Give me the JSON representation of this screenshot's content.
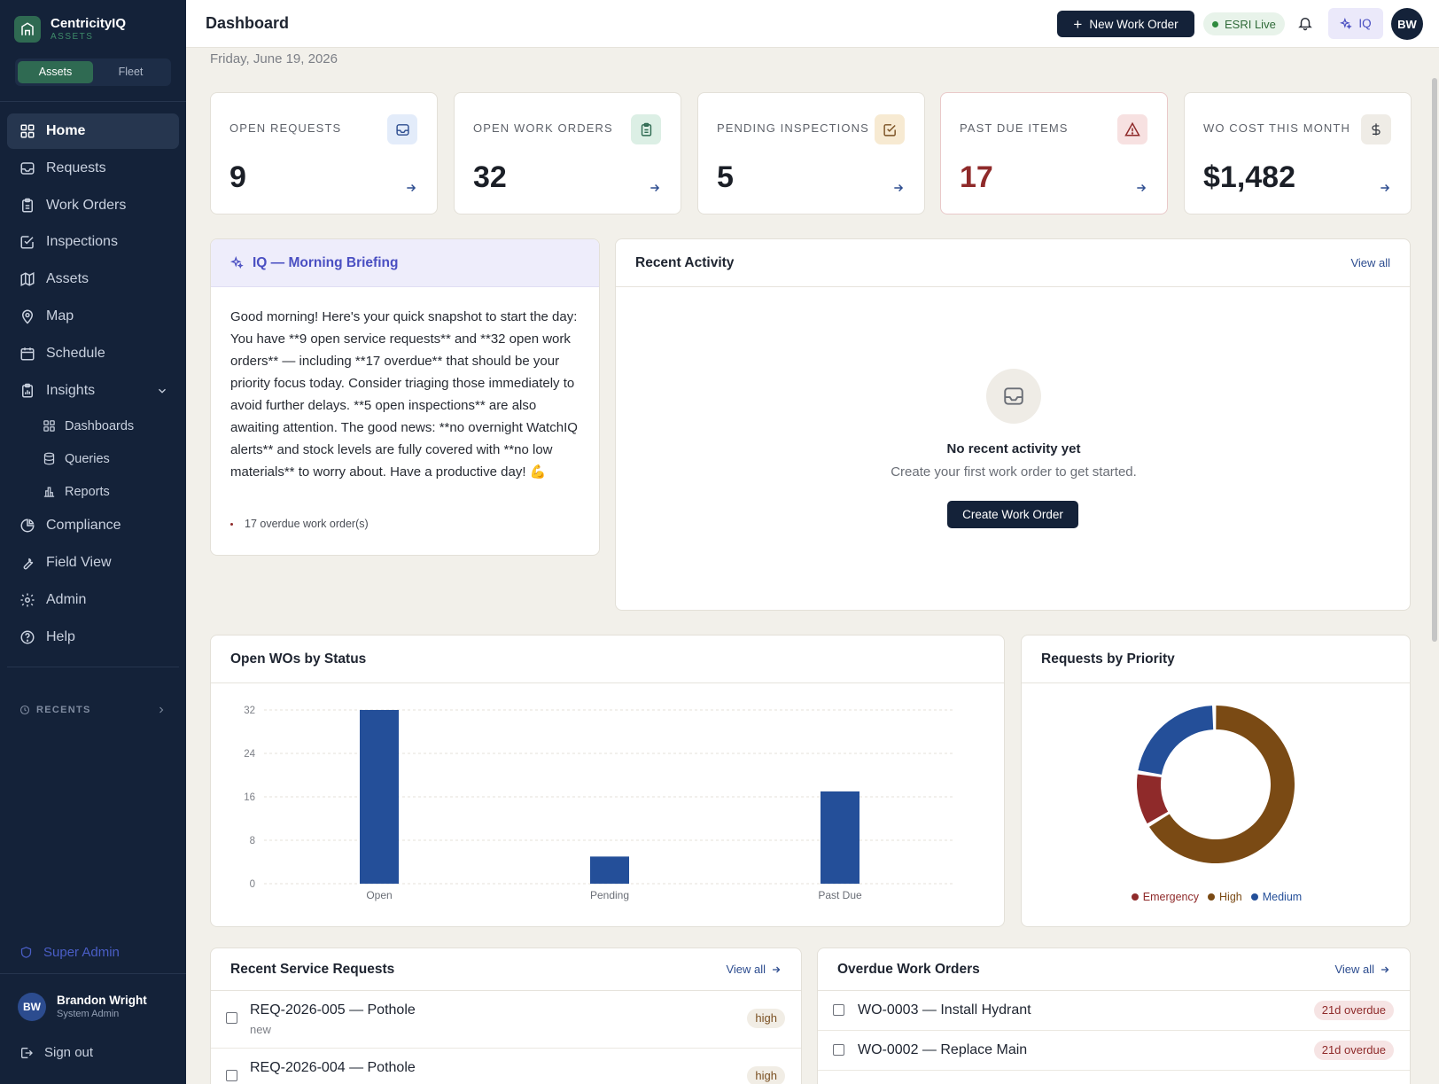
{
  "brand": {
    "name": "CentricityIQ",
    "sub": "ASSETS"
  },
  "mode_toggle": {
    "options": [
      "Assets",
      "Fleet"
    ],
    "selected": "Assets"
  },
  "nav": {
    "home": "Home",
    "requests": "Requests",
    "work_orders": "Work Orders",
    "inspections": "Inspections",
    "assets": "Assets",
    "map": "Map",
    "schedule": "Schedule",
    "insights": "Insights",
    "dashboards": "Dashboards",
    "queries": "Queries",
    "reports": "Reports",
    "compliance": "Compliance",
    "field_view": "Field View",
    "admin": "Admin",
    "help": "Help"
  },
  "recents_label": "RECENTS",
  "super_admin": "Super Admin",
  "user": {
    "initials": "BW",
    "name": "Brandon Wright",
    "role": "System Admin"
  },
  "sign_out": "Sign out",
  "header": {
    "title": "Dashboard",
    "new_wo": "New Work Order",
    "esri": "ESRI Live",
    "iq": "IQ",
    "avatar": "BW"
  },
  "date": "Friday, June 19, 2026",
  "kpis": [
    {
      "label": "OPEN REQUESTS",
      "value": "9",
      "icon": "inbox-icon",
      "bg": "#e3ecfa",
      "fg": "#2c4c8f"
    },
    {
      "label": "OPEN WORK ORDERS",
      "value": "32",
      "icon": "clipboard-icon",
      "bg": "#dcefe5",
      "fg": "#2f6a52"
    },
    {
      "label": "PENDING INSPECTIONS",
      "value": "5",
      "icon": "check-square-icon",
      "bg": "#f7ead2",
      "fg": "#7a5022"
    },
    {
      "label": "PAST DUE ITEMS",
      "value": "17",
      "icon": "alert-triangle-icon",
      "bg": "#f7e1e1",
      "fg": "#8f2a2a"
    },
    {
      "label": "WO COST THIS MONTH",
      "value": "$1,482",
      "icon": "dollar-icon",
      "bg": "#efece6",
      "fg": "#3a3e46"
    }
  ],
  "briefing": {
    "title": "IQ — Morning Briefing",
    "text": "Good morning! Here's your quick snapshot to start the day: You have **9 open service requests** and **32 open work orders** — including **17 overdue** that should be your priority focus today. Consider triaging those immediately to avoid further delays. **5 open inspections** are also awaiting attention. The good news: **no overnight WatchIQ alerts** and stock levels are fully covered with **no low materials** to worry about. Have a productive day! 💪",
    "bullet": "17 overdue work order(s)"
  },
  "activity": {
    "title": "Recent Activity",
    "view_all": "View all",
    "empty_title": "No recent activity yet",
    "empty_sub": "Create your first work order to get started.",
    "create_btn": "Create Work Order"
  },
  "chart_data": [
    {
      "type": "bar",
      "title": "Open WOs by Status",
      "categories": [
        "Open",
        "Pending",
        "Past Due"
      ],
      "values": [
        32,
        5,
        17
      ],
      "ylim": [
        0,
        32
      ],
      "yticks": [
        "0",
        "8",
        "16",
        "24",
        "32"
      ],
      "grid": true,
      "color": "#244f99"
    },
    {
      "type": "pie",
      "title": "Requests by Priority",
      "donut": true,
      "labels": [
        "Emergency",
        "High",
        "Medium"
      ],
      "values": [
        1,
        6,
        2
      ],
      "colors": [
        "#8f2a2a",
        "#7a4a14",
        "#244f99"
      ],
      "legend": "bottom"
    }
  ],
  "service_requests": {
    "title": "Recent Service Requests",
    "view_all": "View all",
    "rows": [
      {
        "title": "REQ-2026-005 — Pothole",
        "status": "new",
        "priority": "high"
      },
      {
        "title": "REQ-2026-004 — Pothole",
        "status": "",
        "priority": "high"
      }
    ]
  },
  "overdue": {
    "title": "Overdue Work Orders",
    "view_all": "View all",
    "rows": [
      {
        "title": "WO-0003 — Install Hydrant",
        "badge": "21d overdue"
      },
      {
        "title": "WO-0002 — Replace Main",
        "badge": "21d overdue"
      }
    ]
  }
}
